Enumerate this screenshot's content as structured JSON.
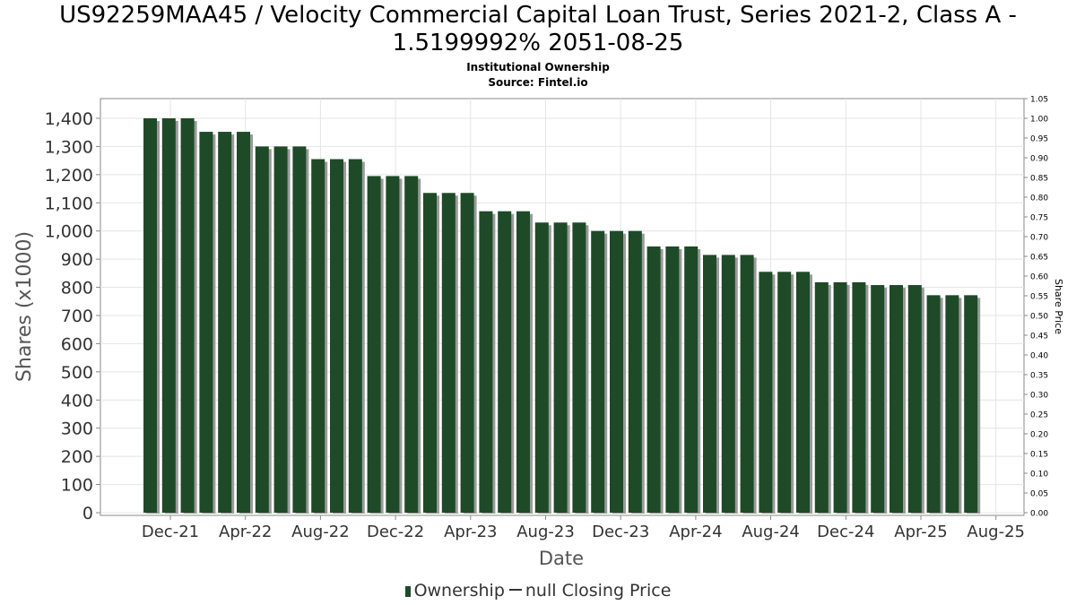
{
  "title": "US92259MAA45 / Velocity Commercial Capital Loan Trust, Series 2021-2, Class A - 1.5199992% 2051-08-25",
  "subtitle": "Institutional Ownership",
  "source": "Source: Fintel.io",
  "legend": {
    "ownership": "Ownership",
    "price": "null Closing Price"
  },
  "chart_data": {
    "type": "bar",
    "xlabel": "Date",
    "ylabel": "Shares (x1000)",
    "y2label": "Share Price",
    "ylim": [
      0,
      1470
    ],
    "y2lim": [
      0,
      1.05
    ],
    "grid": true,
    "legend_position": "bottom",
    "yticks": [
      "0",
      "100",
      "200",
      "300",
      "400",
      "500",
      "600",
      "700",
      "800",
      "900",
      "1,000",
      "1,100",
      "1,200",
      "1,300",
      "1,400"
    ],
    "y2ticks": [
      "0.00",
      "0.05",
      "0.10",
      "0.15",
      "0.20",
      "0.25",
      "0.30",
      "0.35",
      "0.40",
      "0.45",
      "0.50",
      "0.55",
      "0.60",
      "0.65",
      "0.70",
      "0.75",
      "0.80",
      "0.85",
      "0.90",
      "0.95",
      "1.00",
      "1.05"
    ],
    "xticks": [
      "Dec-21",
      "Apr-22",
      "Aug-22",
      "Dec-22",
      "Apr-23",
      "Aug-23",
      "Dec-23",
      "Apr-24",
      "Aug-24",
      "Dec-24",
      "Apr-25",
      "Aug-25"
    ],
    "colors": {
      "bar": "#1e4a28",
      "shadow": "#9a9a9a",
      "grid": "#e4e4e4"
    },
    "series": [
      {
        "name": "Ownership",
        "values": [
          1400,
          1400,
          1400,
          1352,
          1352,
          1352,
          1300,
          1300,
          1300,
          1255,
          1255,
          1255,
          1195,
          1195,
          1195,
          1135,
          1135,
          1135,
          1070,
          1070,
          1070,
          1030,
          1030,
          1030,
          1000,
          1000,
          1000,
          945,
          945,
          945,
          915,
          915,
          915,
          855,
          855,
          855,
          818,
          818,
          818,
          808,
          808,
          808,
          772,
          772,
          772
        ]
      }
    ]
  }
}
